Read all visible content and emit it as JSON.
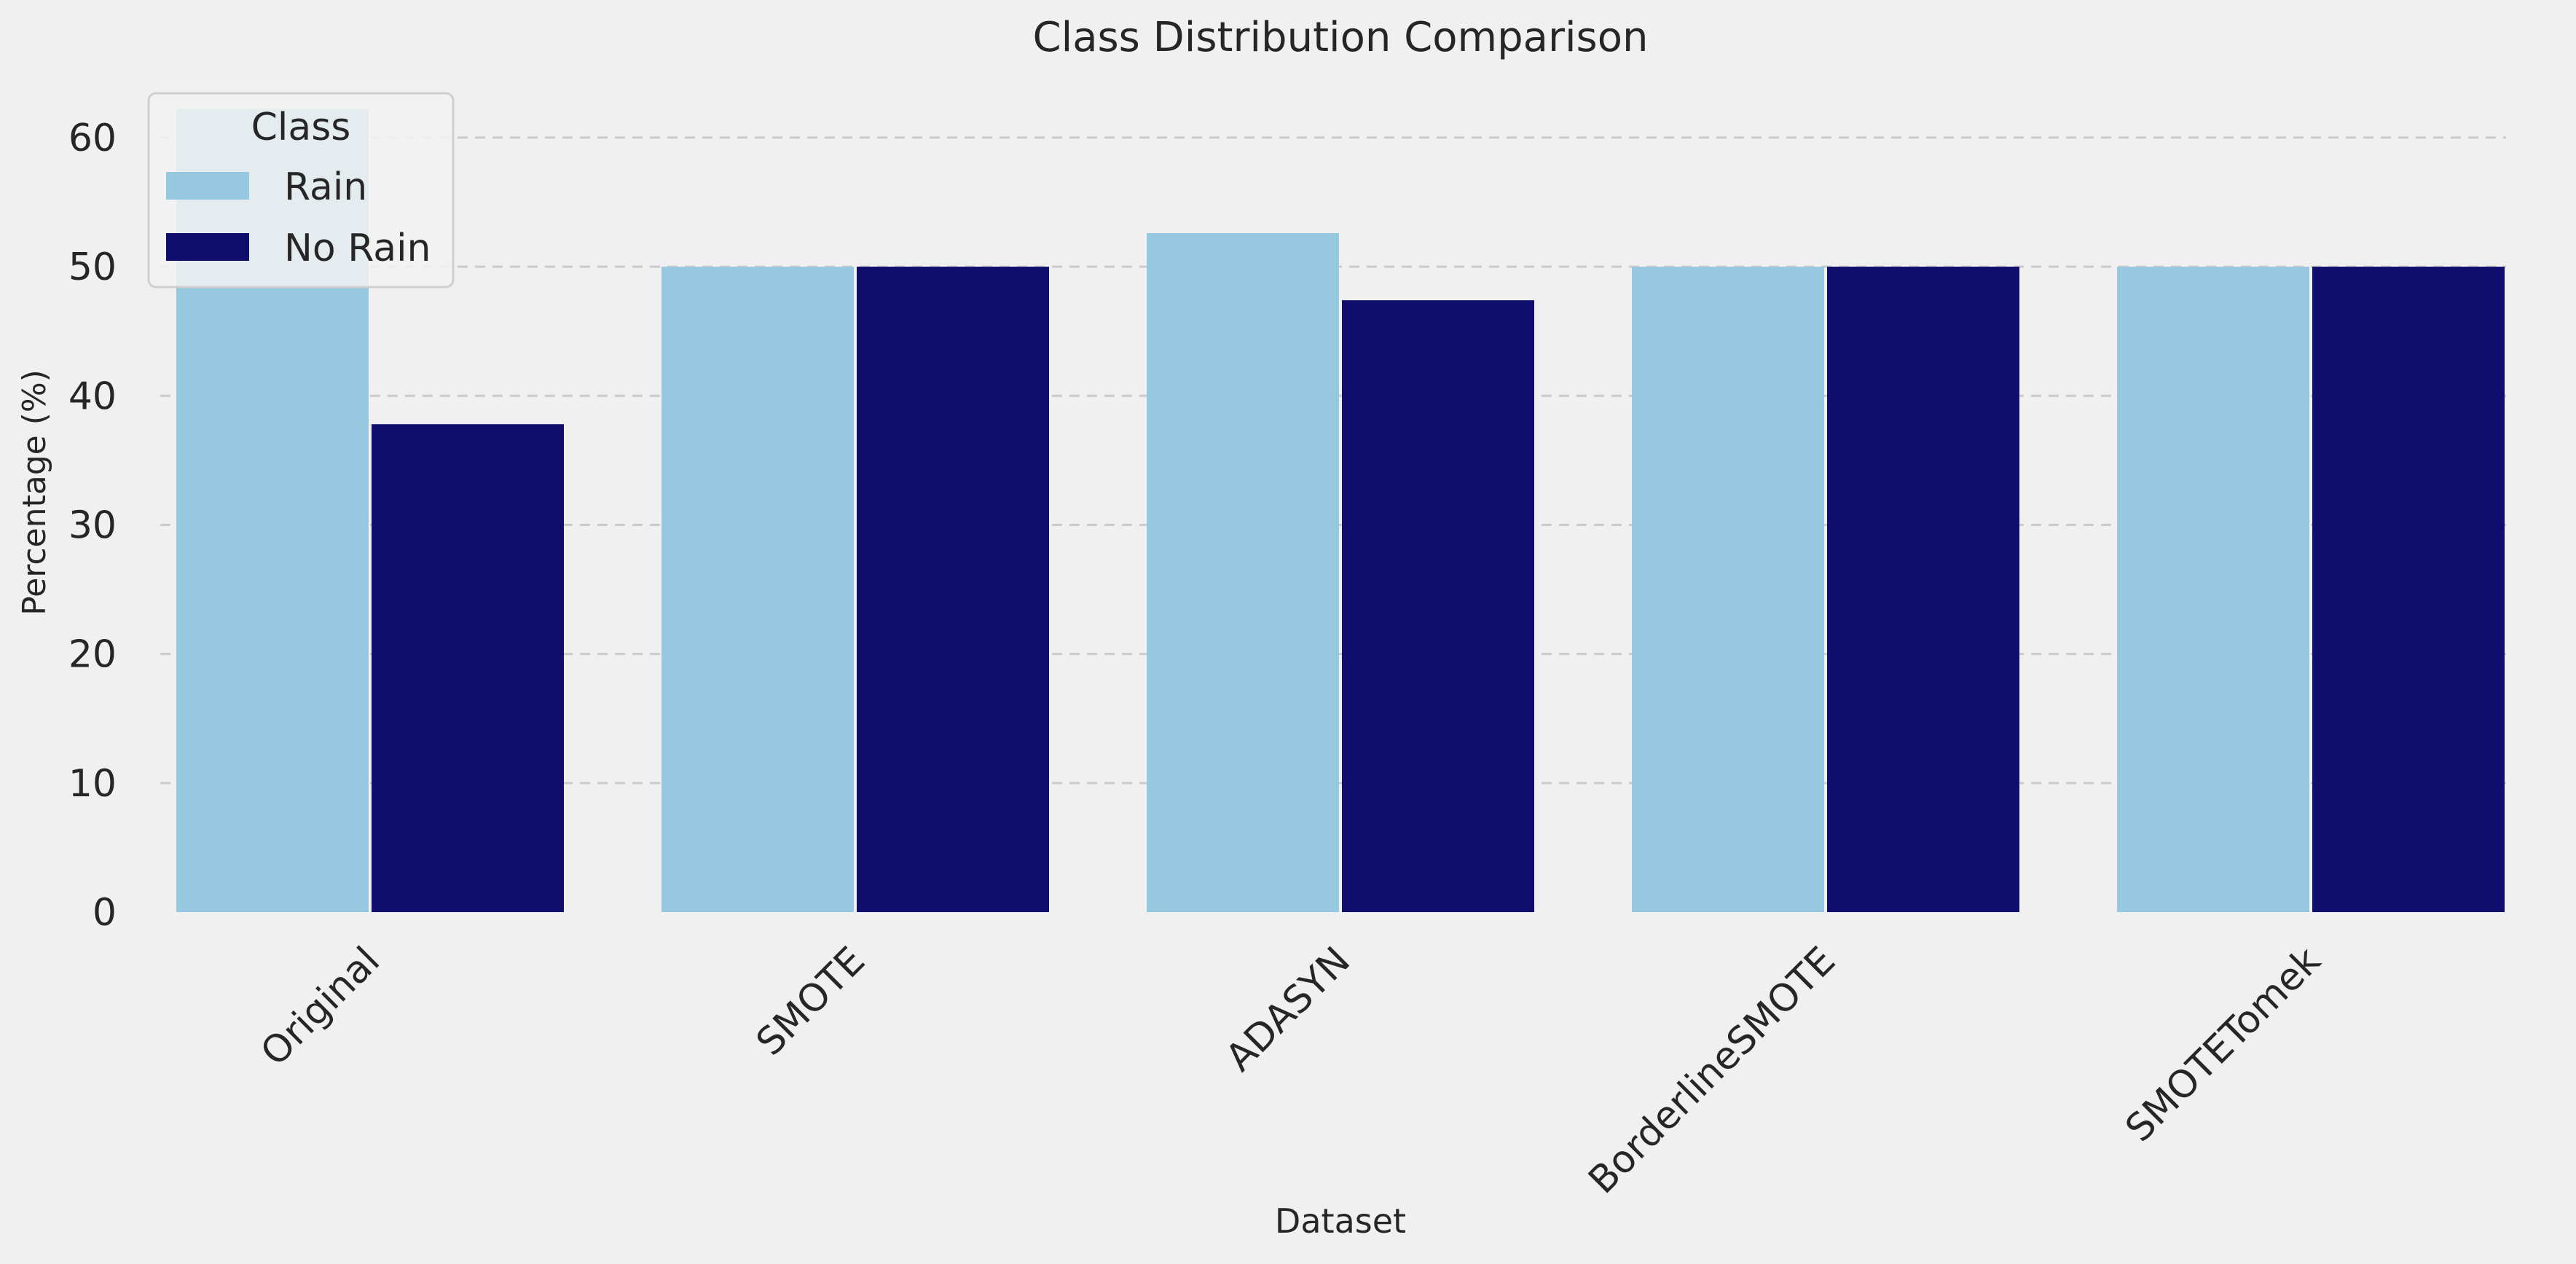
{
  "chart_data": {
    "type": "bar",
    "title": "Class Distribution Comparison",
    "xlabel": "Dataset",
    "ylabel": "Percentage (%)",
    "categories": [
      "Original",
      "SMOTE",
      "ADASYN",
      "BorderlineSMOTE",
      "SMOTETomek"
    ],
    "series": [
      {
        "name": "Rain",
        "color": "#96c8df",
        "values": [
          62.2,
          50.0,
          52.6,
          50.0,
          50.0
        ]
      },
      {
        "name": "No Rain",
        "color": "#100e6d",
        "values": [
          37.8,
          50.0,
          47.4,
          50.0,
          50.0
        ]
      }
    ],
    "ylim": [
      0,
      64
    ],
    "yticks": [
      0,
      10,
      20,
      30,
      40,
      50,
      60
    ],
    "grid": true,
    "legend": {
      "title": "Class",
      "placement": "top-left"
    }
  }
}
